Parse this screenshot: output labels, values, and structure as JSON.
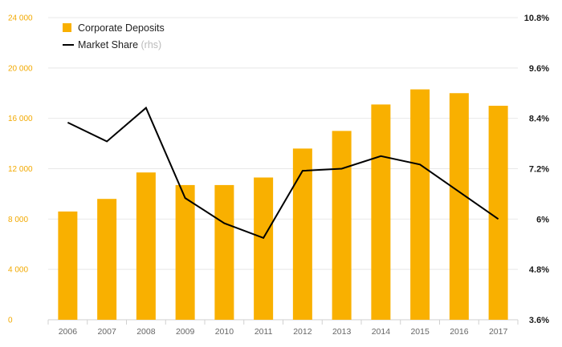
{
  "chart_data": {
    "type": "bar+line",
    "categories": [
      "2006",
      "2007",
      "2008",
      "2009",
      "2010",
      "2011",
      "2012",
      "2013",
      "2014",
      "2015",
      "2016",
      "2017"
    ],
    "series": [
      {
        "name": "Corporate Deposits",
        "type": "bar",
        "axis": "left",
        "color": "#f9b000",
        "values": [
          8600,
          9600,
          11700,
          10700,
          10700,
          11300,
          13600,
          15000,
          17100,
          18300,
          18000,
          17000
        ]
      },
      {
        "name": "Market Share",
        "name_suffix": "(rhs)",
        "type": "line",
        "axis": "right",
        "color": "#000000",
        "values": [
          8.3,
          7.85,
          8.65,
          6.5,
          5.9,
          5.55,
          7.15,
          7.2,
          7.5,
          7.3,
          6.65,
          6.0
        ]
      }
    ],
    "left_axis": {
      "ylim": [
        0,
        24000
      ],
      "ticks": [
        "0",
        "4 000",
        "8 000",
        "12 000",
        "16 000",
        "20 000",
        "24 000"
      ],
      "tick_color": "#f2a900"
    },
    "right_axis": {
      "ylim": [
        3.6,
        10.8
      ],
      "ticks": [
        "3.6%",
        "4.8%",
        "6%",
        "7.2%",
        "8.4%",
        "9.6%",
        "10.8%"
      ]
    },
    "grid": true,
    "legend_position": "top-left"
  }
}
